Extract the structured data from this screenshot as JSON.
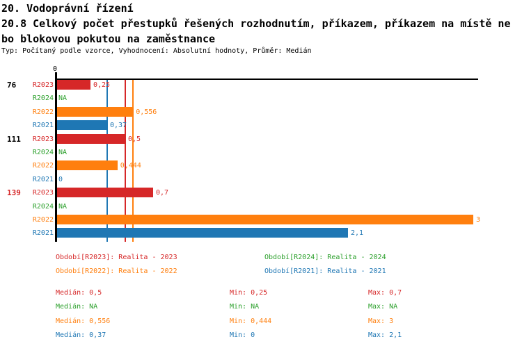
{
  "header": {
    "line1": "20. Vodoprávní řízení",
    "line2": "20.8 Celkový počet přestupků řešených rozhodnutím, příkazem, příkazem na místě ne",
    "line3": "bo blokovou pokutou na zaměstnance",
    "meta": "Typ: Počítaný podle vzorce, Vyhodnocení: Absolutní hodnoty, Průměr: Medián"
  },
  "colors": {
    "R2023": "#d62728",
    "R2024": "#2ca02c",
    "R2022": "#ff7f0e",
    "R2021": "#1f77b4",
    "axis": "#000000",
    "group_label_default": "#000000",
    "group_label_highlight": "#d62728",
    "background": "#ffffff"
  },
  "chart_data": {
    "type": "bar",
    "orientation": "horizontal",
    "axis_zero_label": "0",
    "xlim": [
      0,
      3.04
    ],
    "grid": false,
    "series_order": [
      "R2023",
      "R2024",
      "R2022",
      "R2021"
    ],
    "groups": [
      {
        "label": "76",
        "label_highlight": false,
        "bars": [
          {
            "series": "R2023",
            "display": "0,25",
            "value": 0.25
          },
          {
            "series": "R2024",
            "display": "NA",
            "value": null
          },
          {
            "series": "R2022",
            "display": "0,556",
            "value": 0.556
          },
          {
            "series": "R2021",
            "display": "0,37",
            "value": 0.37
          }
        ]
      },
      {
        "label": "111",
        "label_highlight": false,
        "bars": [
          {
            "series": "R2023",
            "display": "0,5",
            "value": 0.5
          },
          {
            "series": "R2024",
            "display": "NA",
            "value": null
          },
          {
            "series": "R2022",
            "display": "0,444",
            "value": 0.444
          },
          {
            "series": "R2021",
            "display": "0",
            "value": 0
          }
        ]
      },
      {
        "label": "139",
        "label_highlight": true,
        "bars": [
          {
            "series": "R2023",
            "display": "0,7",
            "value": 0.7
          },
          {
            "series": "R2024",
            "display": "NA",
            "value": null
          },
          {
            "series": "R2022",
            "display": "3",
            "value": 3
          },
          {
            "series": "R2021",
            "display": "2,1",
            "value": 2.1
          }
        ]
      }
    ],
    "median_lines": [
      {
        "series": "R2021",
        "value": 0.37
      },
      {
        "series": "R2023",
        "value": 0.5
      },
      {
        "series": "R2022",
        "value": 0.556
      }
    ]
  },
  "legend": [
    {
      "series": "R2023",
      "text": "Období[R2023]: Realita - 2023"
    },
    {
      "series": "R2024",
      "text": "Období[R2024]: Realita - 2024"
    },
    {
      "series": "R2022",
      "text": "Období[R2022]: Realita - 2022"
    },
    {
      "series": "R2021",
      "text": "Období[R2021]: Realita - 2021"
    }
  ],
  "stats": [
    {
      "series": "R2023",
      "median": "Medián: 0,5",
      "min": "Min: 0,25",
      "max": "Max: 0,7"
    },
    {
      "series": "R2024",
      "median": "Medián: NA",
      "min": "Min: NA",
      "max": "Max: NA"
    },
    {
      "series": "R2022",
      "median": "Medián: 0,556",
      "min": "Min: 0,444",
      "max": "Max: 3"
    },
    {
      "series": "R2021",
      "median": "Medián: 0,37",
      "min": "Min: 0",
      "max": "Max: 2,1"
    }
  ]
}
